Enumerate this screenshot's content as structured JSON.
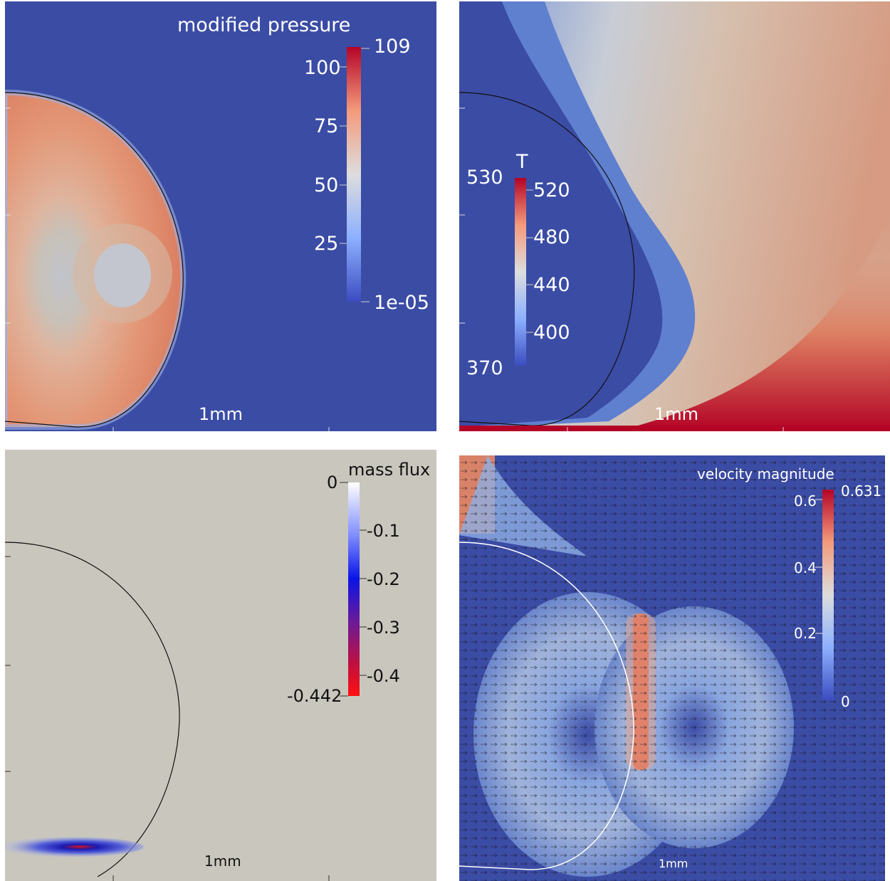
{
  "panels": [
    {
      "id": "pressure",
      "title": "modified pressure",
      "range_max": "109",
      "range_min": "1e-05",
      "ticks": [
        "100",
        "75",
        "50",
        "25"
      ],
      "scale_label": "1mm",
      "colormap": "cool-to-warm"
    },
    {
      "id": "temperature",
      "title": "T",
      "range_max": "530",
      "range_min": "370",
      "ticks": [
        "520",
        "480",
        "440",
        "400"
      ],
      "scale_label": "1mm",
      "colormap": "cool-to-warm"
    },
    {
      "id": "mass-flux",
      "title": "mass flux",
      "range_max": "0",
      "range_min": "-0.442",
      "ticks": [
        "-0.1",
        "-0.2",
        "-0.3",
        "-0.4"
      ],
      "scale_label": "1mm",
      "colormap": "white-blue-purple-red"
    },
    {
      "id": "velocity",
      "title": "velocity magnitude",
      "range_max": "0.631",
      "range_min": "0",
      "ticks": [
        "0.6",
        "0.4",
        "0.2"
      ],
      "scale_label": "1mm",
      "colormap": "cool-to-warm"
    }
  ],
  "colors": {
    "background_blue": "#3a4ca3",
    "mass_flux_background": "#c9c6bd",
    "warm_red": "#b40426",
    "droplet_warm": "#df8d70"
  }
}
